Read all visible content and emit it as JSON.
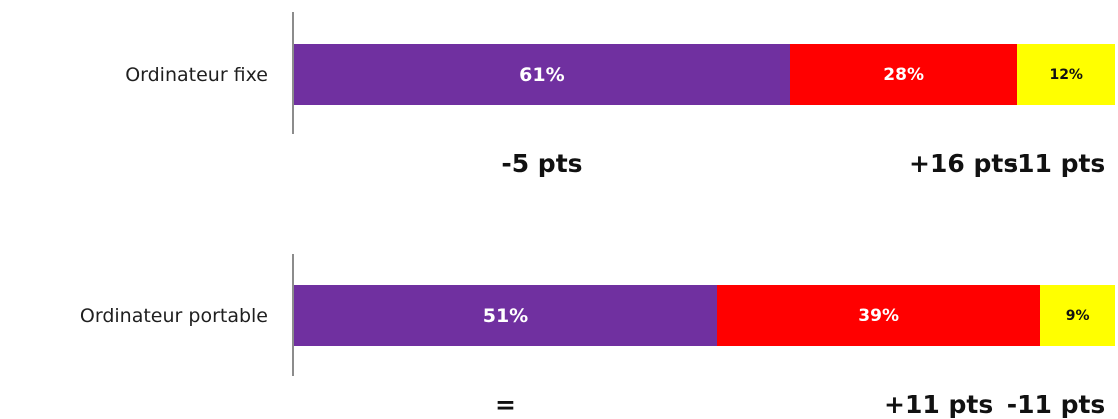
{
  "chart_data": {
    "type": "bar",
    "orientation": "horizontal",
    "stacked": true,
    "categories": [
      "Ordinateur fixe",
      "Ordinateur portable"
    ],
    "series": [
      {
        "values": [
          61,
          51
        ],
        "value_labels": [
          "61%",
          "51%"
        ],
        "color": "#7030a0",
        "label_color": "#ffffff"
      },
      {
        "values": [
          28,
          39
        ],
        "value_labels": [
          "28%",
          "39%"
        ],
        "color": "#ff0000",
        "label_color": "#ffffff"
      },
      {
        "values": [
          12,
          9
        ],
        "value_labels": [
          "12%",
          "9%"
        ],
        "color": "#ffff00",
        "label_color": "#111111"
      }
    ],
    "annotations": [
      [
        "-5 pts",
        "+16 pts",
        "-11 pts"
      ],
      [
        "=",
        "+11 pts",
        "-11 pts"
      ]
    ],
    "legend": "none",
    "grid": false
  }
}
